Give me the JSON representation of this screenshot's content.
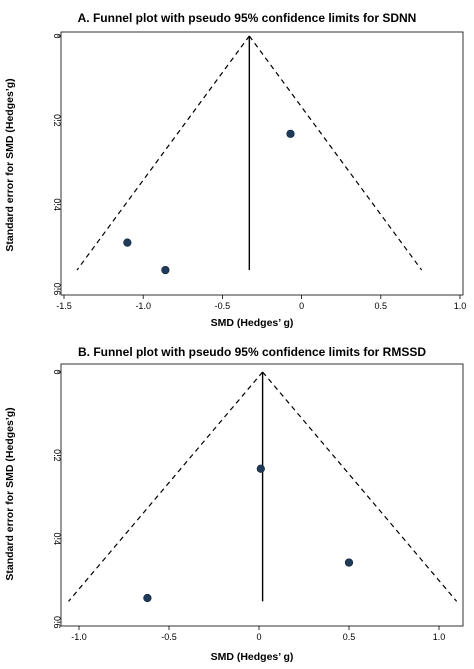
{
  "chart_data": [
    {
      "type": "scatter",
      "title": "A. Funnel plot with  pseudo 95% confidence limits  for SDNN",
      "xlabel": "SMD (Hedges’ g)",
      "ylabel": "Standard error for SMD (Hedges’g)",
      "xlim": [
        -1.5,
        1.0
      ],
      "ylim": [
        0,
        0.6
      ],
      "y_reversed": true,
      "x_ticks": [
        -1.5,
        -1.0,
        -0.5,
        0,
        0.5,
        1.0
      ],
      "x_tick_labels": [
        "-1.5",
        "-1.0",
        "-0.5",
        "0",
        "0.5",
        "1.0"
      ],
      "y_ticks": [
        0,
        0.2,
        0.4,
        0.6
      ],
      "y_tick_labels": [
        "0",
        "0.2",
        "0.4",
        "0.6"
      ],
      "points": [
        {
          "x": -0.07,
          "y": 0.232
        },
        {
          "x": -1.1,
          "y": 0.49
        },
        {
          "x": -0.86,
          "y": 0.555
        }
      ],
      "pooled_effect": -0.33,
      "se_max": 0.555,
      "grid": false,
      "legend": "none",
      "point_color": "#1f3a5a"
    },
    {
      "type": "scatter",
      "title": "B. Funnel plot with  pseudo 95% confidence limits for RMSSD",
      "xlabel": "SMD (Hedges’ g)",
      "ylabel": "Standard error for SMD (Hedges’g)",
      "xlim": [
        -1.1,
        1.1
      ],
      "ylim": [
        0,
        0.6
      ],
      "y_reversed": true,
      "x_ticks": [
        -1.0,
        -0.5,
        0,
        0.5,
        1.0
      ],
      "x_tick_labels": [
        "-1.0",
        "-0.5",
        "0",
        "0.5",
        "1.0"
      ],
      "y_ticks": [
        0,
        0.2,
        0.4,
        0.6
      ],
      "y_tick_labels": [
        "0",
        "0.2",
        "0.4",
        "0.6"
      ],
      "points": [
        {
          "x": 0.01,
          "y": 0.232
        },
        {
          "x": 0.5,
          "y": 0.457
        },
        {
          "x": -0.62,
          "y": 0.542
        }
      ],
      "pooled_effect": 0.02,
      "se_max": 0.55,
      "grid": false,
      "legend": "none",
      "point_color": "#1f3a5a"
    }
  ]
}
